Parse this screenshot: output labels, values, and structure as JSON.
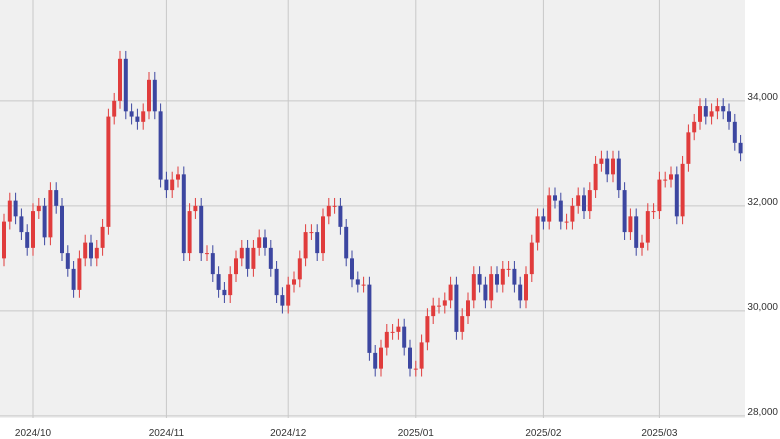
{
  "chart_data": {
    "type": "candlestick",
    "categories": [
      null,
      null,
      null,
      null,
      null,
      "2024/10",
      null,
      null,
      null,
      null,
      null,
      null,
      null,
      null,
      null,
      null,
      null,
      null,
      null,
      null,
      null,
      null,
      null,
      null,
      null,
      null,
      null,
      null,
      "2024/11",
      null,
      null,
      null,
      null,
      null,
      null,
      null,
      null,
      null,
      null,
      null,
      null,
      null,
      null,
      null,
      null,
      null,
      null,
      null,
      null,
      "2024/12",
      null,
      null,
      null,
      null,
      null,
      null,
      null,
      null,
      null,
      null,
      null,
      null,
      null,
      null,
      null,
      null,
      null,
      null,
      null,
      null,
      null,
      "2025/01",
      null,
      null,
      null,
      null,
      null,
      null,
      null,
      null,
      null,
      null,
      null,
      null,
      null,
      null,
      null,
      null,
      null,
      null,
      null,
      null,
      null,
      "2025/02",
      null,
      null,
      null,
      null,
      null,
      null,
      null,
      null,
      null,
      null,
      null,
      null,
      null,
      null,
      null,
      null,
      null,
      null,
      null,
      "2025/03",
      null,
      null,
      null,
      null,
      null,
      null,
      null,
      null,
      null,
      null,
      null,
      null,
      null,
      null
    ],
    "open": [
      31000,
      31700,
      32100,
      31800,
      31500,
      31200,
      31900,
      32000,
      31400,
      32300,
      32000,
      31100,
      30800,
      30400,
      31000,
      31300,
      31000,
      31200,
      31600,
      33700,
      34000,
      34800,
      33800,
      33700,
      33600,
      33800,
      34400,
      33800,
      32500,
      32300,
      32500,
      32600,
      31100,
      31900,
      32000,
      31100,
      31100,
      30700,
      30400,
      30300,
      30700,
      31000,
      31200,
      30800,
      31200,
      31400,
      31200,
      30800,
      30300,
      30100,
      30500,
      30600,
      31000,
      31500,
      31500,
      31100,
      31800,
      32000,
      32000,
      31600,
      31000,
      30600,
      30500,
      30500,
      29200,
      28900,
      29300,
      29600,
      29600,
      29700,
      29300,
      28900,
      28900,
      29400,
      29900,
      30100,
      30100,
      30200,
      30500,
      29600,
      29900,
      30200,
      30700,
      30500,
      30200,
      30700,
      30500,
      30800,
      30800,
      30500,
      30200,
      30700,
      31300,
      31800,
      31700,
      32200,
      32100,
      31700,
      31700,
      32000,
      32200,
      31900,
      32300,
      32800,
      32900,
      32600,
      32900,
      32300,
      31500,
      31800,
      31200,
      31300,
      31900,
      31900,
      32500,
      32500,
      32600,
      31800,
      32800,
      33400,
      33600,
      33900,
      33700,
      33800,
      33900,
      33800,
      33600,
      33200
    ],
    "high": [
      31850,
      32250,
      32250,
      31950,
      31650,
      32050,
      32150,
      32150,
      32450,
      32450,
      32150,
      31250,
      30950,
      31150,
      31450,
      31450,
      31350,
      31750,
      33850,
      34150,
      34950,
      34950,
      33950,
      33850,
      33950,
      34550,
      34550,
      33950,
      32650,
      32650,
      32750,
      32750,
      32050,
      32150,
      32150,
      31250,
      31250,
      30850,
      30550,
      30850,
      31150,
      31350,
      31350,
      31350,
      31550,
      31550,
      31350,
      30950,
      30450,
      30650,
      30750,
      31150,
      31650,
      31650,
      31650,
      31950,
      32150,
      32150,
      32150,
      31750,
      31150,
      30750,
      30650,
      30650,
      29350,
      29450,
      29750,
      29750,
      29850,
      29850,
      29450,
      29050,
      29550,
      30050,
      30250,
      30250,
      30350,
      30650,
      30650,
      30050,
      30350,
      30850,
      30850,
      30650,
      30850,
      30850,
      30950,
      30950,
      30950,
      30650,
      30850,
      31450,
      31950,
      31950,
      32350,
      32350,
      32250,
      31850,
      32150,
      32350,
      32350,
      32450,
      32950,
      33050,
      33050,
      33050,
      33050,
      32450,
      31950,
      31950,
      31450,
      32050,
      32050,
      32650,
      32650,
      32750,
      32750,
      32950,
      33550,
      33750,
      34050,
      34050,
      33950,
      34050,
      34050,
      33950,
      33750,
      33350
    ],
    "low": [
      30850,
      31550,
      31650,
      31350,
      31050,
      31050,
      31750,
      31250,
      31250,
      31850,
      30950,
      30650,
      30250,
      30250,
      30850,
      30850,
      30850,
      31050,
      31450,
      33550,
      33850,
      33650,
      33550,
      33450,
      33450,
      33650,
      33650,
      32350,
      32150,
      32150,
      32350,
      30950,
      30950,
      31750,
      30950,
      30950,
      30550,
      30250,
      30150,
      30150,
      30550,
      30850,
      30650,
      30650,
      31050,
      31050,
      30650,
      30150,
      29950,
      29950,
      30350,
      30450,
      30850,
      31350,
      30950,
      30950,
      31650,
      31850,
      31450,
      30850,
      30450,
      30350,
      30350,
      29050,
      28750,
      28750,
      29150,
      29450,
      29450,
      29150,
      28750,
      28750,
      28750,
      29250,
      29750,
      29950,
      29950,
      30050,
      29450,
      29450,
      29750,
      30050,
      30350,
      30050,
      30050,
      30350,
      30350,
      30650,
      30350,
      30050,
      30050,
      30550,
      31150,
      31550,
      31550,
      31950,
      31550,
      31550,
      31550,
      31850,
      31750,
      31750,
      32150,
      32650,
      32450,
      32450,
      32150,
      31350,
      31350,
      31050,
      31050,
      31150,
      31750,
      31750,
      32350,
      32350,
      31650,
      31650,
      32650,
      33250,
      33450,
      33550,
      33550,
      33650,
      33650,
      33450,
      33050,
      32850
    ],
    "close": [
      31700,
      32100,
      31800,
      31500,
      31200,
      31900,
      32000,
      31400,
      32300,
      32000,
      31100,
      30800,
      30400,
      31000,
      31300,
      31000,
      31200,
      31600,
      33700,
      34000,
      34800,
      33800,
      33700,
      33600,
      33800,
      34400,
      33800,
      32500,
      32300,
      32500,
      32600,
      31100,
      31900,
      32000,
      31100,
      31100,
      30700,
      30400,
      30300,
      30700,
      31000,
      31200,
      30800,
      31200,
      31400,
      31200,
      30800,
      30300,
      30100,
      30500,
      30600,
      31000,
      31500,
      31500,
      31100,
      31800,
      32000,
      32000,
      31600,
      31000,
      30600,
      30500,
      30500,
      29200,
      28900,
      29300,
      29600,
      29600,
      29700,
      29300,
      28900,
      28900,
      29400,
      29900,
      30100,
      30100,
      30200,
      30500,
      29600,
      29900,
      30200,
      30700,
      30500,
      30200,
      30700,
      30500,
      30800,
      30800,
      30500,
      30200,
      30700,
      31300,
      31800,
      31700,
      32200,
      32100,
      31700,
      31700,
      32000,
      32200,
      31900,
      32300,
      32800,
      32900,
      32600,
      32900,
      32300,
      31500,
      31800,
      31200,
      31300,
      31900,
      31900,
      32500,
      32500,
      32600,
      31800,
      32800,
      33400,
      33600,
      33900,
      33700,
      33800,
      33900,
      33800,
      33600,
      33200,
      33000
    ],
    "up_color": "#e03c3c",
    "down_color": "#3c46a0",
    "ylim": [
      27960,
      35920
    ],
    "yticks": [
      {
        "value": 28000,
        "label": "28,000"
      },
      {
        "value": 30000,
        "label": "30,000"
      },
      {
        "value": 32000,
        "label": "32,000"
      },
      {
        "value": 34000,
        "label": "34,000"
      }
    ],
    "grid": true
  }
}
